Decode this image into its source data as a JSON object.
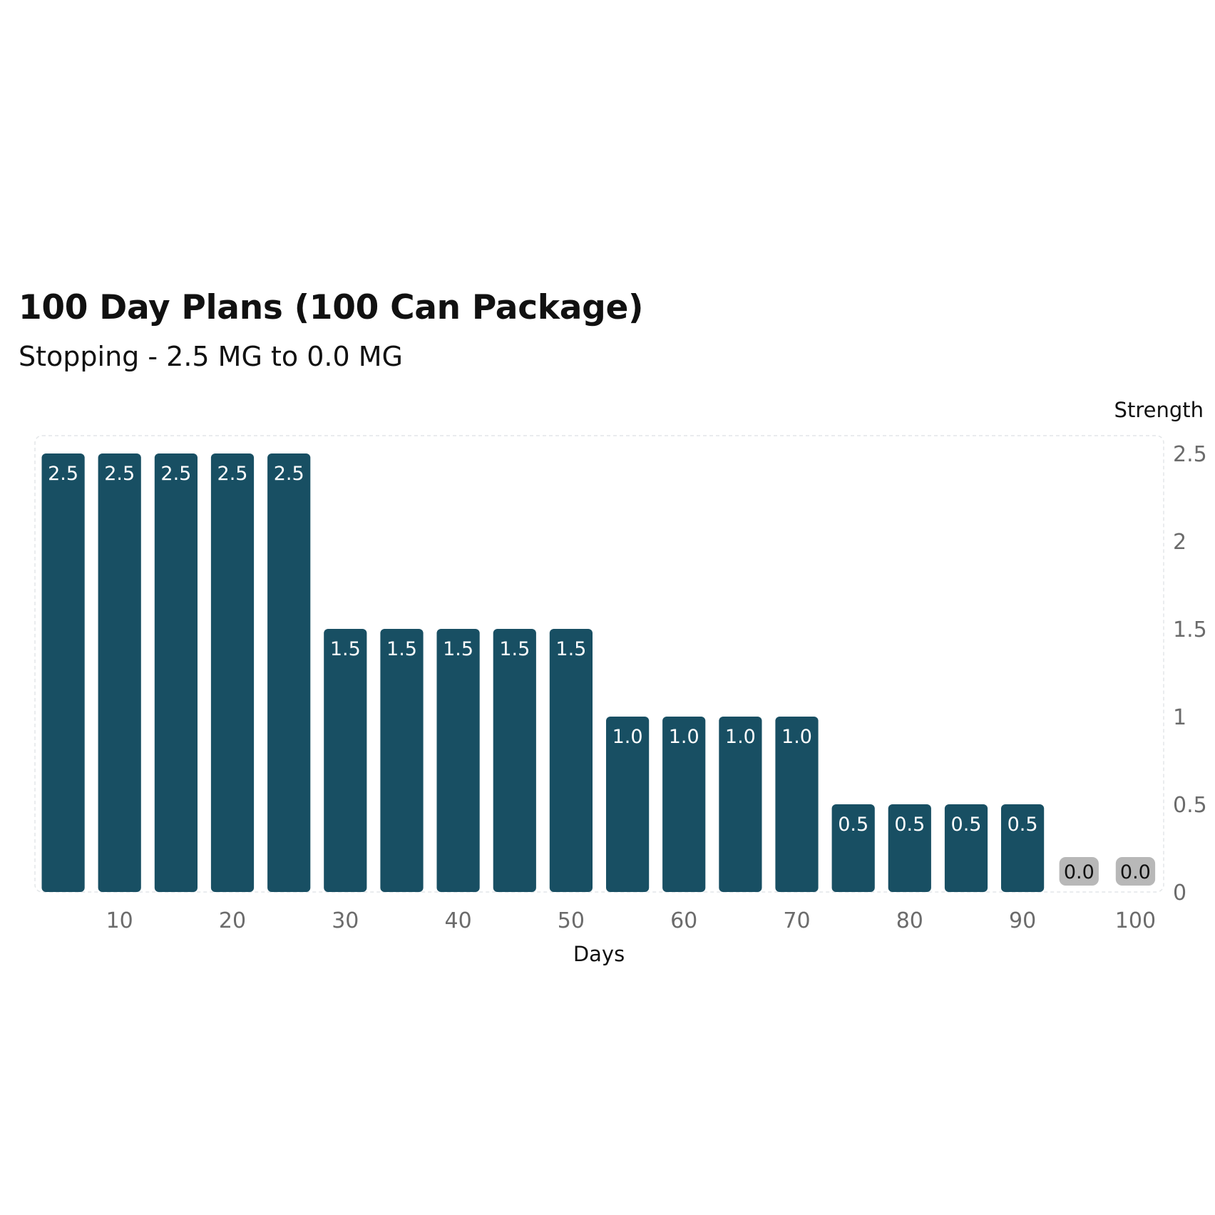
{
  "chart_data": {
    "type": "bar",
    "title": "100 Day Plans (100 Can Package)",
    "subtitle": "Stopping - 2.5 MG to 0.0 MG",
    "xlabel": "Days",
    "ylabel": "Strength",
    "x_ticks": [
      "10",
      "20",
      "30",
      "40",
      "50",
      "60",
      "70",
      "80",
      "90",
      "100"
    ],
    "y_ticks": [
      "0",
      "0.5",
      "1",
      "1.5",
      "2",
      "2.5"
    ],
    "xlim": [
      2.5,
      102.5
    ],
    "ylim": [
      0,
      2.5
    ],
    "x": [
      5,
      10,
      15,
      20,
      25,
      30,
      35,
      40,
      45,
      50,
      55,
      60,
      65,
      70,
      75,
      80,
      85,
      90,
      95,
      100
    ],
    "values": [
      2.5,
      2.5,
      2.5,
      2.5,
      2.5,
      1.5,
      1.5,
      1.5,
      1.5,
      1.5,
      1.0,
      1.0,
      1.0,
      1.0,
      0.5,
      0.5,
      0.5,
      0.5,
      0.0,
      0.0
    ],
    "data_labels": [
      "2.5",
      "2.5",
      "2.5",
      "2.5",
      "2.5",
      "1.5",
      "1.5",
      "1.5",
      "1.5",
      "1.5",
      "1.0",
      "1.0",
      "1.0",
      "1.0",
      "0.5",
      "0.5",
      "0.5",
      "0.5",
      "0.0",
      "0.0"
    ],
    "y_axis_position": "right",
    "grid": false,
    "colors": {
      "bar": "#184f63",
      "zero_bar": "#b8b8b8",
      "bar_label": "#ffffff",
      "zero_bar_label": "#111111"
    }
  }
}
